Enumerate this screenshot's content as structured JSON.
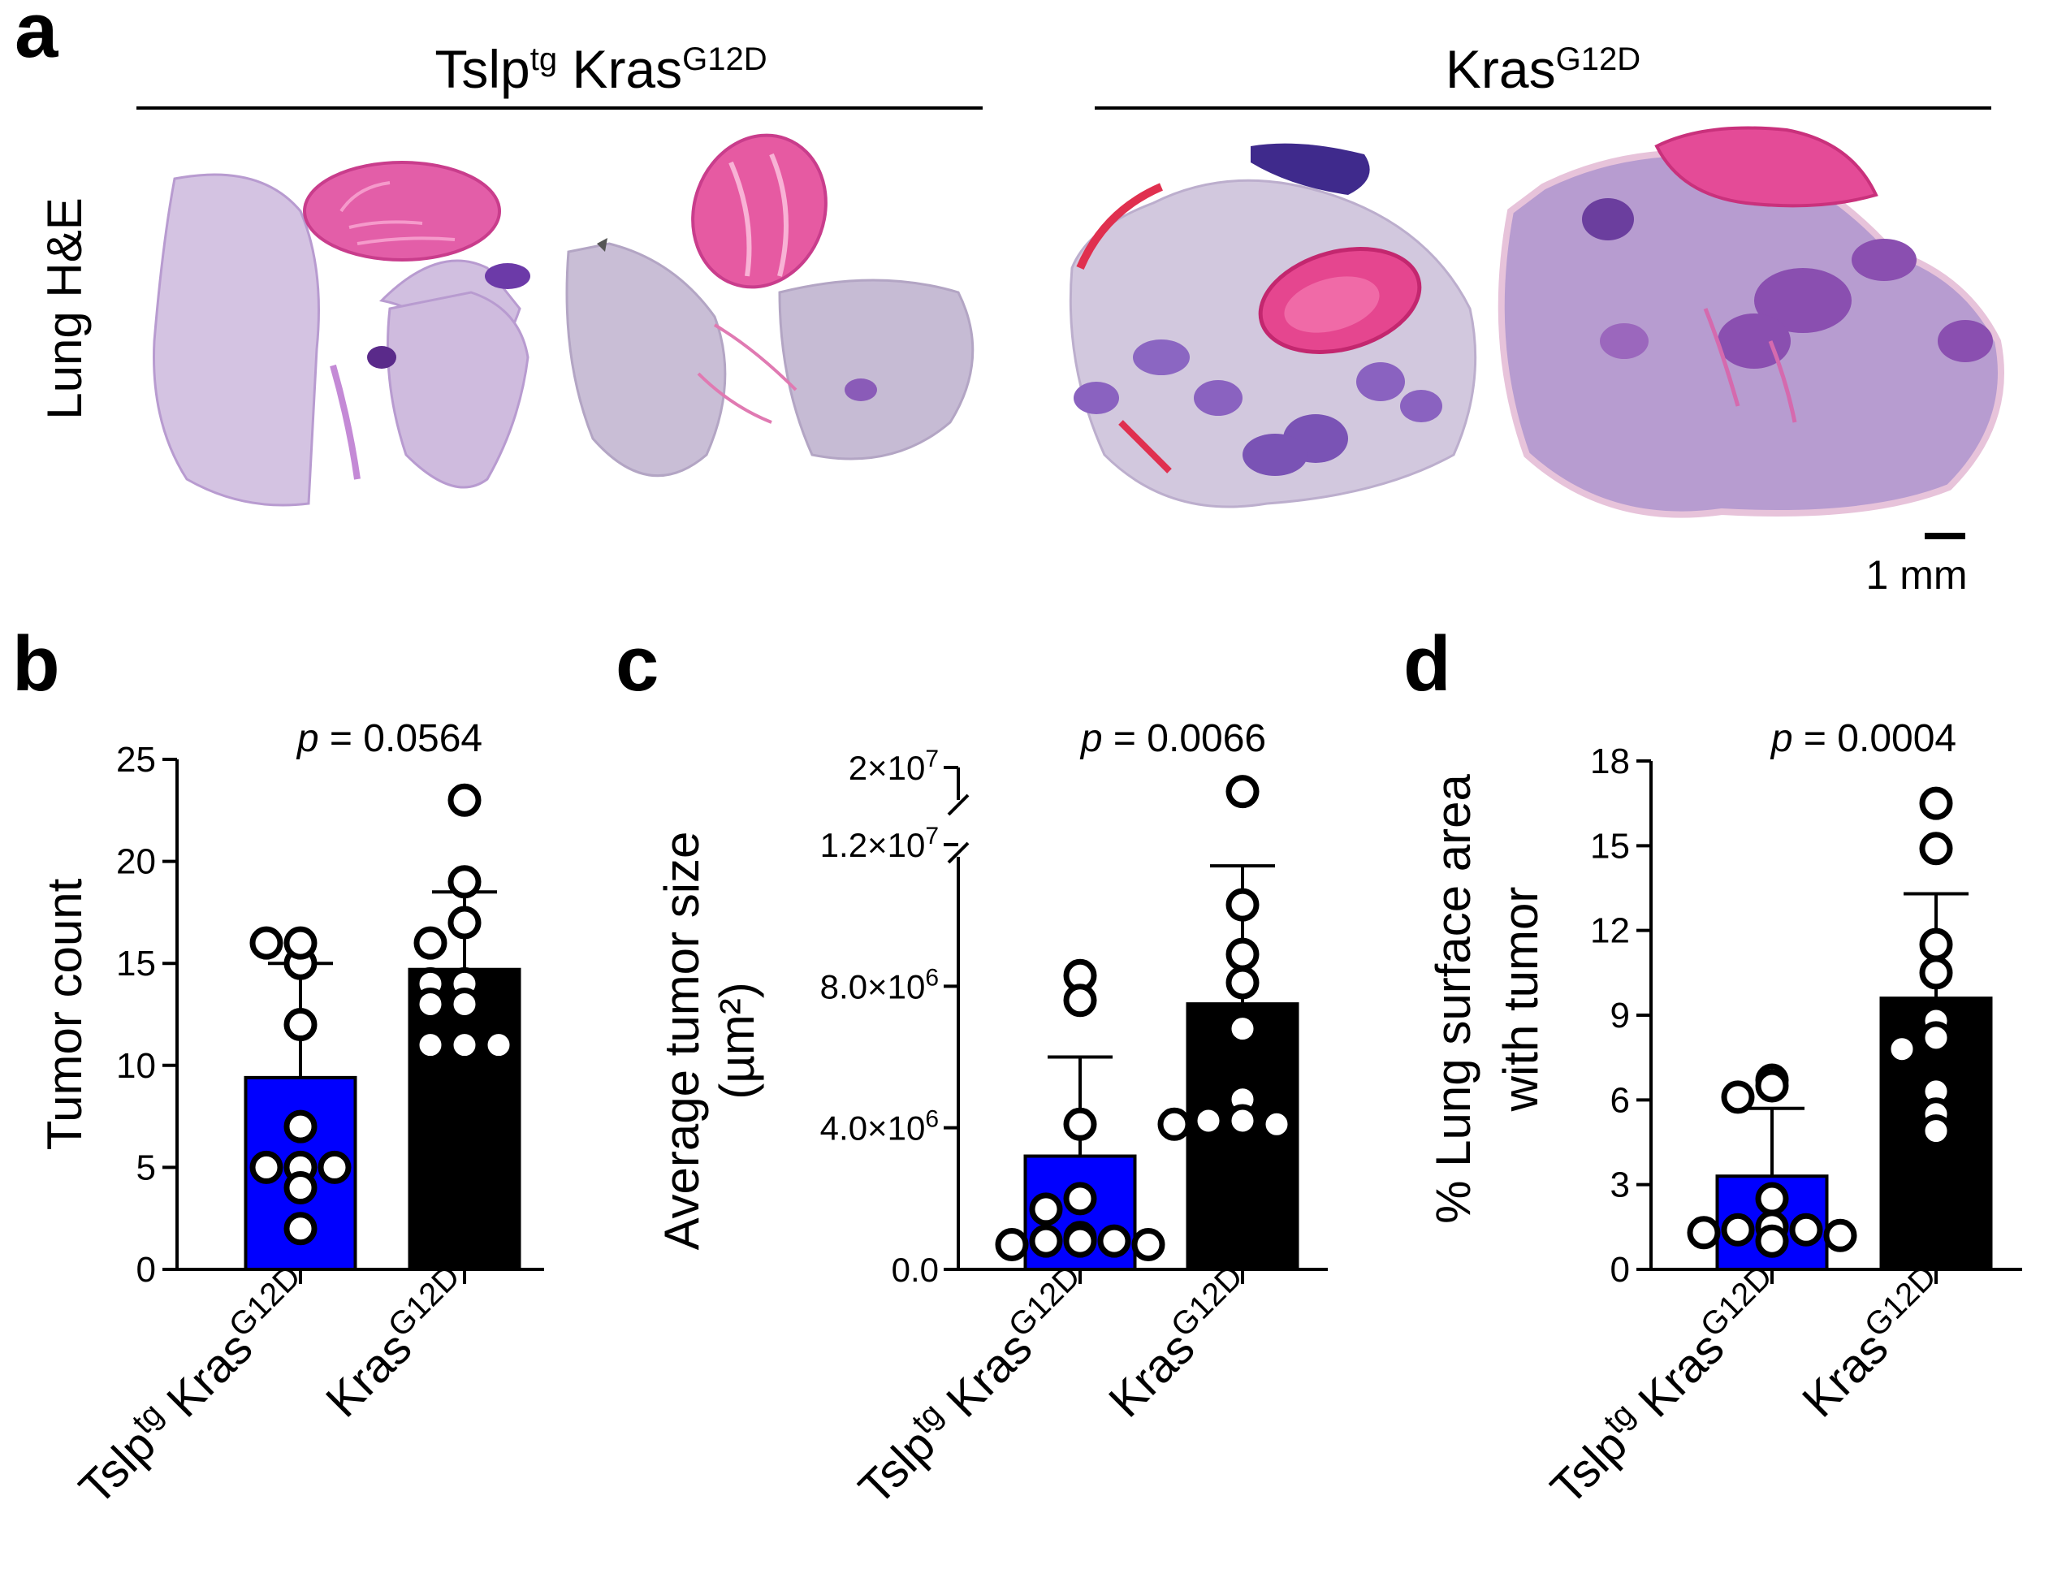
{
  "panel_labels": [
    "a",
    "b",
    "c",
    "d"
  ],
  "panel_a": {
    "row_label": "Lung H&E",
    "groups": [
      {
        "name_parts": [
          {
            "text": "Tslp"
          },
          {
            "text": "tg",
            "sup": true
          },
          {
            "text": " Kras"
          },
          {
            "text": "G12D",
            "sup": true
          }
        ]
      },
      {
        "name_parts": [
          {
            "text": "Kras"
          },
          {
            "text": "G12D",
            "sup": true
          }
        ]
      }
    ],
    "scale_bar_label": "1 mm",
    "colors": {
      "eosin": "#e8579c",
      "hematoxylin": "#7a3fae",
      "lung": "#cbb6d8",
      "blood": "#d8254a"
    }
  },
  "category_labels": [
    [
      {
        "text": "Tslp"
      },
      {
        "text": "tg",
        "sup": true
      },
      {
        "text": " Kras"
      },
      {
        "text": "G12D",
        "sup": true
      }
    ],
    [
      {
        "text": "Kras"
      },
      {
        "text": "G12D",
        "sup": true
      }
    ]
  ],
  "chart_data": [
    {
      "panel": "b",
      "type": "bar",
      "categories": [
        "Tslp tg Kras G12D",
        "Kras G12D"
      ],
      "colors": [
        "#0000ff",
        "#000000"
      ],
      "title": "p = 0.0564",
      "ylabel": "Tumor count",
      "ylim": [
        0,
        25
      ],
      "yticks": [
        0,
        5,
        10,
        15,
        20,
        25
      ],
      "ytick_labels": [
        "0",
        "5",
        "10",
        "15",
        "20",
        "25"
      ],
      "means": [
        9.4,
        14.7
      ],
      "sd": [
        5.6,
        3.8
      ],
      "points": [
        [
          15,
          16,
          16,
          12,
          7,
          5,
          5,
          5,
          4,
          2
        ],
        [
          23,
          19,
          17,
          16,
          14,
          14,
          13,
          13,
          11,
          11,
          11
        ]
      ]
    },
    {
      "panel": "c",
      "type": "bar",
      "categories": [
        "Tslp tg Kras G12D",
        "Kras G12D"
      ],
      "colors": [
        "#0000ff",
        "#000000"
      ],
      "title": "p = 0.0066",
      "ylabel": "Average tumor size",
      "ylabel2": "(µm²)",
      "axis_break": true,
      "ylim_lower": [
        0,
        12000000
      ],
      "ylim_upper_tick": 20000000,
      "ytick_labels": [
        {
          "value": 0,
          "text": "0.0"
        },
        {
          "value": 4000000,
          "text": "4.0×10",
          "exp": "6"
        },
        {
          "value": 8000000,
          "text": "8.0×10",
          "exp": "6"
        },
        {
          "value": 12000000,
          "text": "1.2×10",
          "exp": "7"
        },
        {
          "value": 20000000,
          "text": "2×10",
          "exp": "7"
        }
      ],
      "means": [
        3200000,
        7500000
      ],
      "sd": [
        2800000,
        3900000
      ],
      "points": [
        [
          8300000,
          7600000,
          4100000,
          2000000,
          1700000,
          900000,
          800000,
          800000,
          800000,
          700000,
          700000
        ],
        [
          13500000,
          10300000,
          8900000,
          8100000,
          6800000,
          4800000,
          4200000,
          4200000,
          4100000,
          4100000
        ]
      ]
    },
    {
      "panel": "d",
      "type": "bar",
      "categories": [
        "Tslp tg Kras G12D",
        "Kras G12D"
      ],
      "colors": [
        "#0000ff",
        "#000000"
      ],
      "title": "p = 0.0004",
      "ylabel": "% Lung surface area",
      "ylabel2": "with tumor",
      "ylim": [
        0,
        18
      ],
      "yticks": [
        0,
        3,
        6,
        9,
        12,
        15,
        18
      ],
      "ytick_labels": [
        "0",
        "3",
        "6",
        "9",
        "12",
        "15",
        "18"
      ],
      "means": [
        3.3,
        9.6
      ],
      "sd": [
        2.4,
        3.7
      ],
      "points": [
        [
          6.7,
          6.5,
          6.1,
          2.5,
          1.5,
          1.4,
          1.4,
          1.3,
          1.2,
          1.0
        ],
        [
          16.5,
          14.9,
          11.5,
          10.5,
          8.8,
          8.2,
          7.8,
          6.3,
          5.5,
          4.9
        ]
      ]
    }
  ]
}
